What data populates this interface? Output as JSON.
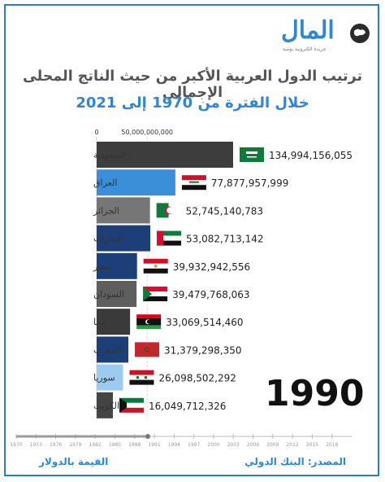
{
  "header": {
    "logo_text": "المال",
    "logo_sub": "جريدة الكترونية يومية",
    "title": "ترتيب الدول العربية الأكبر من حيث الناتج المحلى الإجمالي",
    "subtitle": "خلال الفترة من 1970 إلى 2021"
  },
  "year_label": "1990",
  "footer": {
    "unit_note": "القيمة بالدولار",
    "source": "المصدر: البنك الدولي"
  },
  "colors": {
    "accent": "#2f86d6",
    "frame": "#2a7bd1"
  },
  "chart_data": {
    "type": "bar",
    "orientation": "horizontal",
    "x_ticks": [
      "0",
      "50,000,000,000"
    ],
    "x_tick_values": [
      0,
      50000000000
    ],
    "xlim": [
      0,
      142000000000
    ],
    "grid": true,
    "categories": [
      "السعودية",
      "العراق",
      "الجزائر",
      "الإمارات",
      "مصر",
      "السودان",
      "ليبيا",
      "المغرب",
      "سوريا",
      "الكويت"
    ],
    "values": [
      134994156055,
      77877957999,
      52745140783,
      53082713142,
      39932942556,
      39479768063,
      33069514460,
      31379298350,
      26098502292,
      16049712326
    ],
    "value_labels": [
      "134,994,156,055",
      "77,877,957,999",
      "52,745,140,783",
      "53,082,713,142",
      "39,932,942,556",
      "39,479,768,063",
      "33,069,514,460",
      "31,379,298,350",
      "26,098,502,292",
      "16,049,712,326"
    ],
    "bar_colors": [
      "#3d3d3d",
      "#3a8fd8",
      "#767676",
      "#1d3f78",
      "#1d3f78",
      "#5e5e5e",
      "#3a3a3a",
      "#1d3f78",
      "#9ccaf0",
      "#444444"
    ],
    "flags": [
      "saudi-arabia",
      "iraq",
      "algeria",
      "uae",
      "egypt",
      "sudan",
      "libya",
      "morocco",
      "syria",
      "kuwait"
    ],
    "timeline": {
      "ticks": [
        "1970",
        "1973",
        "1976",
        "1979",
        "1982",
        "1985",
        "1988",
        "1991",
        "1994",
        "1997",
        "2000",
        "2003",
        "2006",
        "2009",
        "2012",
        "2015",
        "2018"
      ],
      "current": 1990
    }
  }
}
